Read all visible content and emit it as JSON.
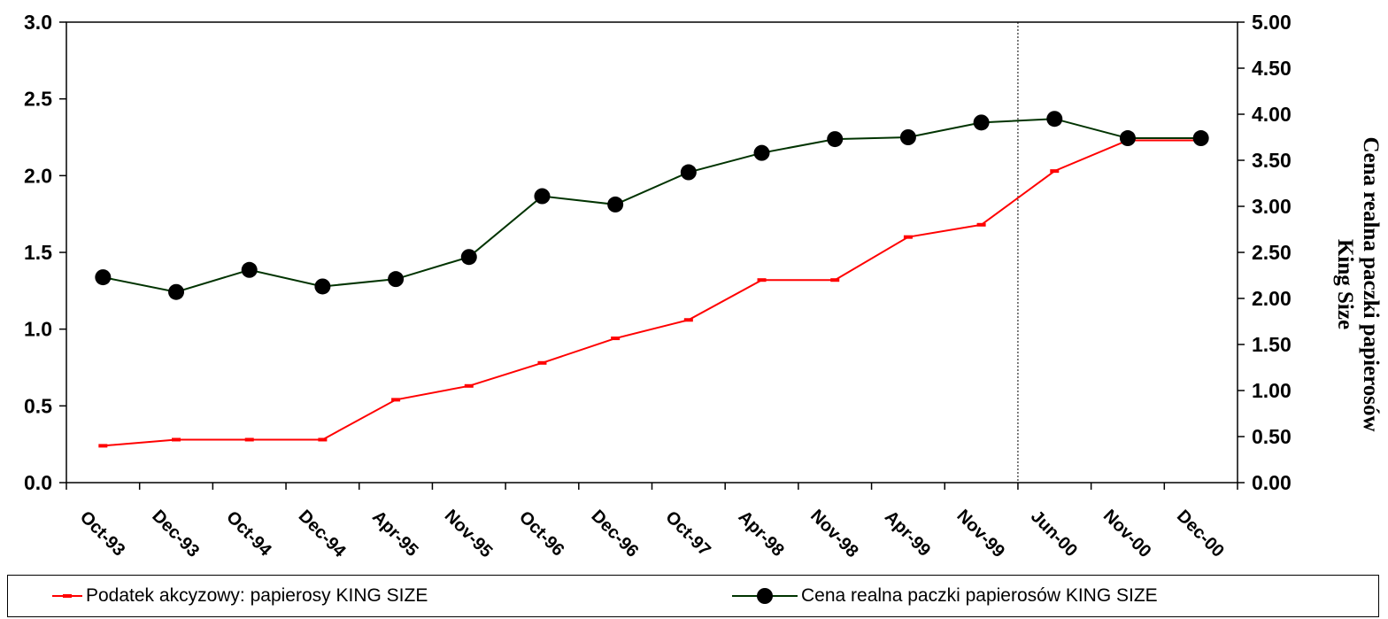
{
  "chart_data": {
    "type": "line",
    "categories": [
      "Oct-93",
      "Dec-93",
      "Oct-94",
      "Dec-94",
      "Apr-95",
      "Nov-95",
      "Oct-96",
      "Dec-96",
      "Oct-97",
      "Apr-98",
      "Nov-98",
      "Apr-99",
      "Nov-99",
      "Jun-00",
      "Nov-00",
      "Dec-00"
    ],
    "y_left": {
      "ticks": [
        "0.0",
        "0.5",
        "1.0",
        "1.5",
        "2.0",
        "2.5",
        "3.0"
      ],
      "min": 0,
      "max": 3.0,
      "label": ""
    },
    "y_right": {
      "ticks": [
        "0.00",
        "0.50",
        "1.00",
        "1.50",
        "2.00",
        "2.50",
        "3.00",
        "3.50",
        "4.00",
        "4.50",
        "5.00"
      ],
      "min": 0,
      "max": 5.0,
      "label_line1": "Cena realna paczki papierosów",
      "label_line2": "King Size"
    },
    "series": [
      {
        "name": "Podatek akcyzowy: papierosy KING SIZE",
        "axis": "left",
        "color": "#ff0000",
        "marker": "dash",
        "values": [
          0.24,
          0.28,
          0.28,
          0.28,
          0.54,
          0.63,
          0.78,
          0.94,
          1.06,
          1.32,
          1.32,
          1.6,
          1.68,
          2.03,
          2.23,
          2.23
        ]
      },
      {
        "name": "Cena realna paczki papierosów KING SIZE",
        "axis": "right",
        "color": "#003300",
        "marker": "circle",
        "values": [
          2.23,
          2.07,
          2.31,
          2.13,
          2.21,
          2.45,
          3.11,
          3.02,
          3.37,
          3.58,
          3.73,
          3.75,
          3.91,
          3.95,
          3.74,
          3.74
        ]
      }
    ],
    "vertical_reference_line_after": "Nov-99",
    "grid": false,
    "legend_position": "bottom"
  }
}
